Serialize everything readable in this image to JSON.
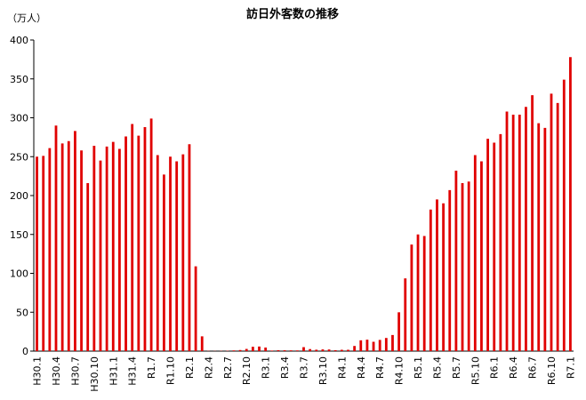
{
  "chart_data": {
    "type": "bar",
    "title": "訪日外客数の推移",
    "y_label": "（万人）",
    "categories": [
      "H30.1",
      null,
      null,
      "H30.4",
      null,
      null,
      "H30.7",
      null,
      null,
      "H30.10",
      null,
      null,
      "H31.1",
      null,
      null,
      "H31.4",
      null,
      null,
      "R1.7",
      null,
      null,
      "R1.10",
      null,
      null,
      "R2.1",
      null,
      null,
      "R2.4",
      null,
      null,
      "R2.7",
      null,
      null,
      "R2.10",
      null,
      null,
      "R3.1",
      null,
      null,
      "R3.4",
      null,
      null,
      "R3.7",
      null,
      null,
      "R3.10",
      null,
      null,
      "R4.1",
      null,
      null,
      "R4.4",
      null,
      null,
      "R4.7",
      null,
      null,
      "R4.10",
      null,
      null,
      "R5.1",
      null,
      null,
      "R5.4",
      null,
      null,
      "R5.7",
      null,
      null,
      "R5.10",
      null,
      null,
      "R6.1",
      null,
      null,
      "R6.4",
      null,
      null,
      "R6.7",
      null,
      null,
      "R6.10",
      null,
      null,
      "R7.1"
    ],
    "values": [
      250,
      251,
      261,
      290,
      267,
      270,
      283,
      258,
      216,
      264,
      245,
      263,
      269,
      260,
      276,
      292,
      277,
      288,
      299,
      252,
      227,
      250,
      244,
      253,
      266,
      109,
      19,
      0.3,
      0.2,
      0.3,
      0.4,
      0.9,
      1.4,
      2.8,
      5.6,
      5.9,
      4.6,
      0.7,
      1.2,
      1.1,
      1.0,
      0.9,
      5.1,
      2.6,
      1.8,
      2.2,
      2.1,
      1.2,
      1.7,
      1.7,
      6.6,
      13.9,
      14.7,
      12.0,
      14.4,
      16.9,
      20.7,
      49.9,
      93.5,
      137,
      150,
      148,
      182,
      195,
      190,
      207,
      232,
      216,
      218,
      252,
      244,
      273,
      268,
      279,
      308,
      304,
      304,
      314,
      329,
      293,
      287,
      331,
      319,
      349,
      378
    ],
    "color": "#e00000",
    "ylim": [
      0,
      400
    ],
    "yticks": [
      0,
      50,
      100,
      150,
      200,
      250,
      300,
      350,
      400
    ]
  }
}
